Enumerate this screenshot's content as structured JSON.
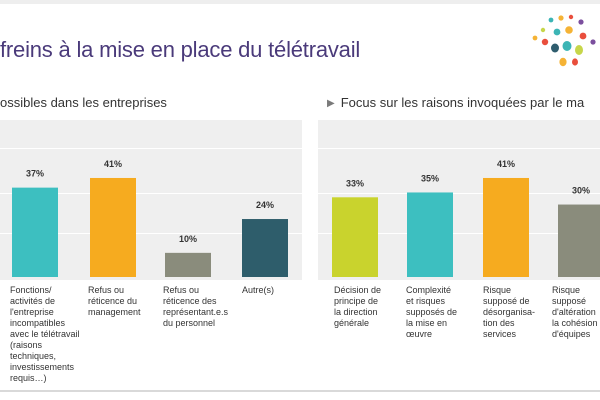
{
  "header": {
    "title": "freins à la mise en place du télétravail"
  },
  "left_panel": {
    "subtitle": "ossibles dans les entreprises"
  },
  "right_panel": {
    "subtitle": "Focus sur les raisons invoquées par le ma"
  },
  "logo": {
    "icon": "dots-logo-icon",
    "colors": [
      "#e94e3c",
      "#f5b335",
      "#3cb5b5",
      "#7b4f9e",
      "#c7d64a",
      "#2f5d6e"
    ]
  },
  "chart_data": [
    {
      "type": "bar",
      "categories": [
        "Fonctions/\nactivités de\nl'entreprise\nincompatibles\navec le télétravail\n(raisons\ntechniques,\ninvestissements\nrequis…)",
        "Refus ou\nréticence du\nmanagement",
        "Refus ou\nréticence des\nreprésentant.e.s\ndu personnel",
        "Autre(s)"
      ],
      "values": [
        37,
        41,
        10,
        24
      ],
      "labels": [
        "37%",
        "41%",
        "10%",
        "24%"
      ],
      "colors": [
        "#3dbfc0",
        "#f6ab1f",
        "#8a8c7c",
        "#2e5d6b"
      ],
      "ylim": [
        0,
        65
      ],
      "grid": true
    },
    {
      "type": "bar",
      "categories": [
        "Décision de\nprincipe de\nla direction\ngénérale",
        "Complexité\net risques\nsupposés de\nla mise en\nœuvre",
        "Risque\nsupposé de\ndésorganisa-\ntion des\nservices",
        "Risque\nsupposé\nd'altération\nla cohésion\nd'équipes"
      ],
      "values": [
        33,
        35,
        41,
        30
      ],
      "labels": [
        "33%",
        "35%",
        "41%",
        "30%"
      ],
      "colors": [
        "#c9d32d",
        "#3dbfc0",
        "#f6ab1f",
        "#8a8c7c"
      ],
      "ylim": [
        0,
        65
      ],
      "grid": true
    }
  ]
}
